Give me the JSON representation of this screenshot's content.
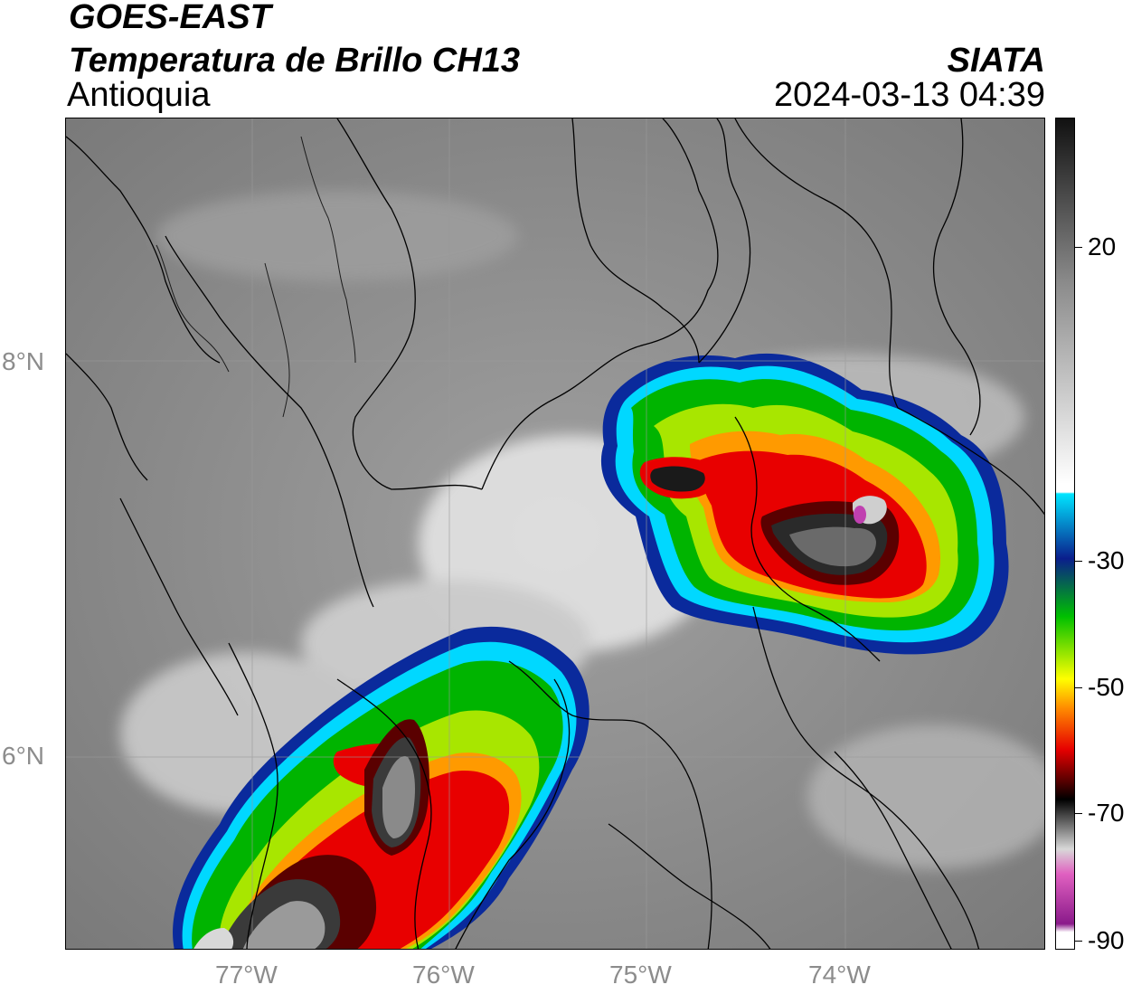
{
  "header": {
    "satellite": "GOES-EAST",
    "product": "Temperatura de Brillo CH13",
    "region": "Antioquia",
    "source": "SIATA",
    "datetime": "2024-03-13 04:39"
  },
  "map": {
    "lon_labels": [
      "77°W",
      "76°W",
      "75°W",
      "74°W"
    ],
    "lat_labels": [
      "8°N",
      "6°N"
    ],
    "background_color": "#8a8a8a",
    "border_color": "#000000"
  },
  "colorbar": {
    "tick_labels": [
      "20",
      "-30",
      "-50",
      "-70",
      "-90"
    ],
    "colors": {
      "warm_top": "#111111",
      "warm_gray": "#8c8c8c",
      "white": "#ffffff",
      "cyan": "#00e5ff",
      "blue": "#0a1e8c",
      "green": "#00c000",
      "yellow": "#ffff00",
      "orange": "#ff8c00",
      "red": "#e60000",
      "dark_red": "#500000",
      "black": "#000000",
      "light_gray": "#d8d8d8",
      "pink": "#e060c0",
      "purple": "#8a1a8a"
    }
  }
}
